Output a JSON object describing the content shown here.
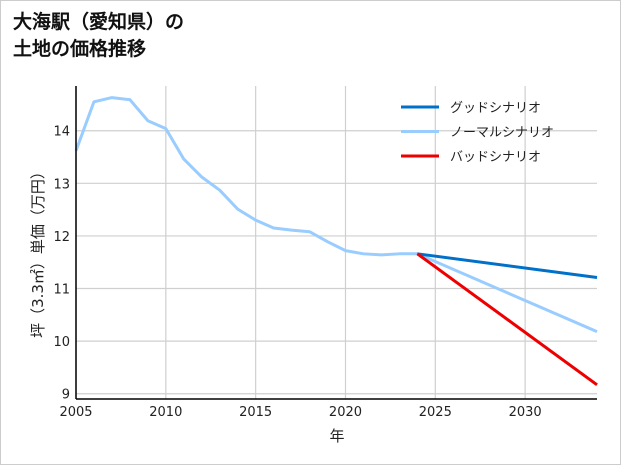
{
  "chart_data": {
    "type": "line",
    "title_line1": "大海駅（愛知県）の",
    "title_line2": "土地の価格推移",
    "xlabel": "年",
    "ylabel": "坪（3.3㎡）単価（万円）",
    "xlim": [
      2005,
      2034
    ],
    "ylim": [
      8.9,
      14.85
    ],
    "xticks": [
      2005,
      2010,
      2015,
      2020,
      2025,
      2030
    ],
    "yticks": [
      9,
      10,
      11,
      12,
      13,
      14
    ],
    "grid": true,
    "legend_position": "top-right",
    "series": [
      {
        "name": "グッドシナリオ",
        "color": "#0070c8",
        "x": [
          2024,
          2034
        ],
        "y": [
          11.66,
          11.21
        ]
      },
      {
        "name": "ノーマルシナリオ",
        "color": "#99ccff",
        "x": [
          2005,
          2006,
          2007,
          2008,
          2009,
          2010,
          2011,
          2012,
          2013,
          2014,
          2015,
          2016,
          2017,
          2018,
          2019,
          2020,
          2021,
          2022,
          2023,
          2024,
          2034
        ],
        "y": [
          13.62,
          14.55,
          14.63,
          14.59,
          14.19,
          14.04,
          13.46,
          13.12,
          12.87,
          12.51,
          12.3,
          12.15,
          12.11,
          12.08,
          11.89,
          11.72,
          11.66,
          11.64,
          11.66,
          11.66,
          10.18
        ]
      },
      {
        "name": "バッドシナリオ",
        "color": "#ee0000",
        "x": [
          2024,
          2034
        ],
        "y": [
          11.66,
          9.17
        ]
      }
    ]
  }
}
